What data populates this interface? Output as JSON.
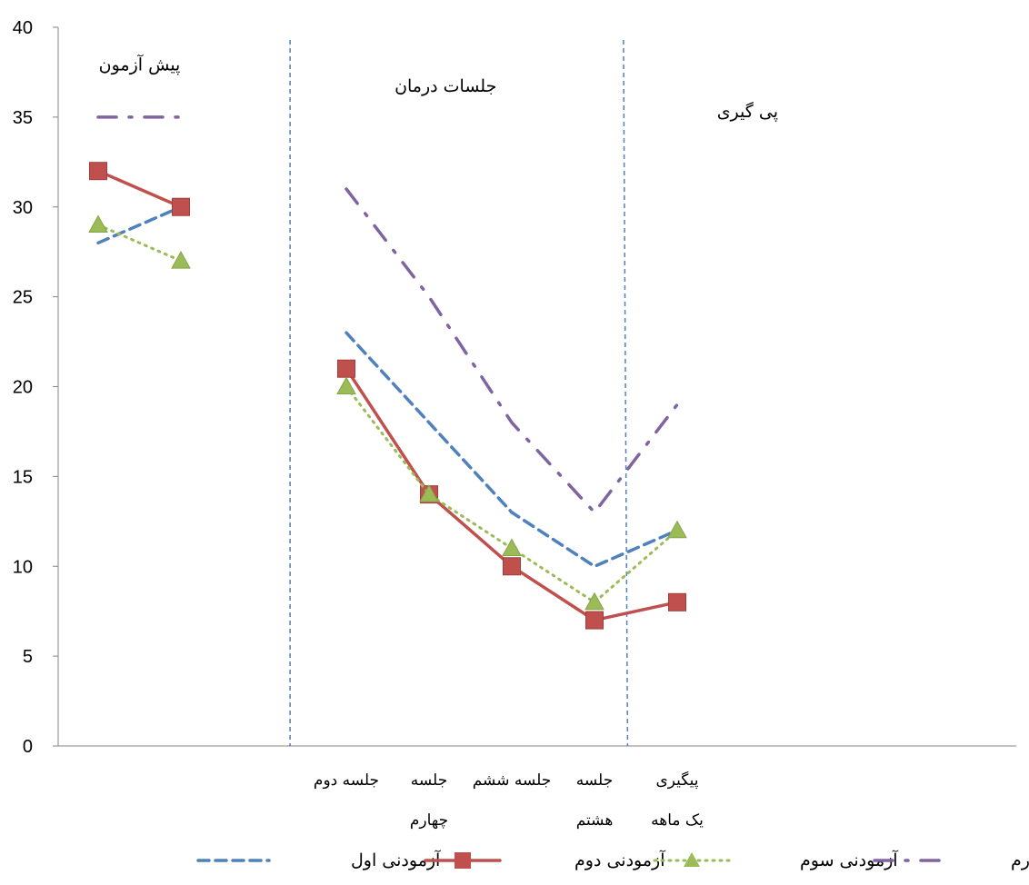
{
  "chart_data": {
    "type": "line",
    "ylim": [
      0,
      40
    ],
    "yticks": [
      0,
      5,
      10,
      15,
      20,
      25,
      30,
      35,
      40
    ],
    "x_slots": 11,
    "categories": [
      {
        "slot": 3,
        "lines": [
          "جلسه دوم"
        ]
      },
      {
        "slot": 4,
        "lines": [
          "جلسه",
          "چهارم"
        ]
      },
      {
        "slot": 5,
        "lines": [
          "جلسه ششم"
        ]
      },
      {
        "slot": 6,
        "lines": [
          "جلسه",
          "هشتم"
        ]
      },
      {
        "slot": 7,
        "lines": [
          "پیگیری",
          "یک ماهه"
        ]
      }
    ],
    "phase_labels": [
      {
        "text": "پیش آزمون",
        "slot": 0.5,
        "y": 37.6
      },
      {
        "text": "جلسات درمان",
        "slot": 4.2,
        "y": 36.4
      },
      {
        "text": "پی گیری",
        "slot": 7.85,
        "y": 35.0
      }
    ],
    "dividers": [
      {
        "top_slot": 2.32,
        "bottom_slot": 2.32
      },
      {
        "top_slot": 6.35,
        "bottom_slot": 6.4
      }
    ],
    "series": [
      {
        "name": "آزمودنی اول",
        "color": "#4F81BD",
        "marker": "none",
        "dash": "dashed",
        "segments": [
          [
            [
              0,
              28
            ],
            [
              1,
              30
            ]
          ],
          [
            [
              3,
              23
            ],
            [
              4,
              18
            ],
            [
              5,
              13
            ],
            [
              6,
              10
            ],
            [
              7,
              12
            ]
          ]
        ]
      },
      {
        "name": "آزمودنی دوم",
        "color": "#C0504D",
        "marker": "square",
        "dash": "solid",
        "segments": [
          [
            [
              0,
              32
            ],
            [
              1,
              30
            ]
          ],
          [
            [
              3,
              21
            ],
            [
              4,
              14
            ],
            [
              5,
              10
            ],
            [
              6,
              7
            ],
            [
              7,
              8
            ]
          ]
        ]
      },
      {
        "name": "آزمودنی سوم",
        "color": "#9BBB59",
        "marker": "triangle",
        "dash": "dotted",
        "segments": [
          [
            [
              0,
              29
            ],
            [
              1,
              27
            ]
          ],
          [
            [
              3,
              20
            ],
            [
              4,
              14
            ],
            [
              5,
              11
            ],
            [
              6,
              8
            ],
            [
              7,
              12
            ]
          ]
        ]
      },
      {
        "name": "آزمودنی چهارم",
        "color": "#8064A2",
        "marker": "none",
        "dash": "dashdot",
        "segments": [
          [
            [
              0,
              35
            ],
            [
              1,
              35
            ]
          ],
          [
            [
              3,
              31
            ],
            [
              4,
              25
            ],
            [
              5,
              18
            ],
            [
              6,
              13
            ],
            [
              7,
              19
            ]
          ]
        ]
      }
    ],
    "legend_position": "bottom",
    "grid": false
  }
}
